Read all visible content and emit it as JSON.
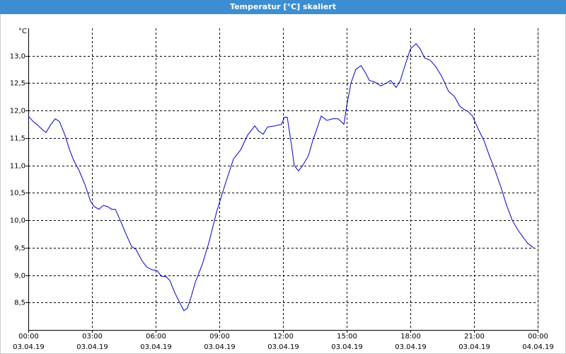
{
  "chart_data": {
    "type": "line",
    "title": "Temperatur [°C] skaliert",
    "y_label": "°C",
    "color": "#0000c8",
    "grid": true,
    "x": [
      0,
      0.23,
      0.4,
      0.67,
      0.83,
      1.07,
      1.27,
      1.47,
      1.73,
      1.93,
      2.13,
      2.4,
      2.67,
      2.93,
      3.1,
      3.33,
      3.53,
      3.73,
      3.93,
      4.1,
      4.33,
      4.6,
      4.87,
      5.07,
      5.33,
      5.57,
      5.8,
      6.07,
      6.27,
      6.5,
      6.67,
      6.9,
      7.13,
      7.33,
      7.5,
      7.67,
      7.87,
      8.2,
      8.5,
      8.87,
      9.27,
      9.67,
      10,
      10.33,
      10.67,
      10.87,
      11.07,
      11.27,
      11.6,
      11.93,
      12.07,
      12.2,
      12.4,
      12.53,
      12.73,
      12.93,
      13.2,
      13.4,
      13.6,
      13.8,
      14.07,
      14.33,
      14.6,
      14.87,
      15,
      15.2,
      15.43,
      15.67,
      15.87,
      16.07,
      16.33,
      16.6,
      16.87,
      17.07,
      17.33,
      17.53,
      17.73,
      18,
      18.27,
      18.47,
      18.67,
      18.93,
      19.2,
      19.47,
      19.8,
      20.07,
      20.33,
      20.53,
      20.73,
      20.93,
      21.2,
      21.47,
      21.73,
      22,
      22.27,
      22.53,
      22.8,
      23.07,
      23.33,
      23.53,
      23.8
    ],
    "values": [
      11.9,
      11.8,
      11.75,
      11.65,
      11.6,
      11.75,
      11.85,
      11.8,
      11.55,
      11.3,
      11.1,
      10.9,
      10.65,
      10.35,
      10.25,
      10.2,
      10.27,
      10.25,
      10.2,
      10.2,
      10.0,
      9.75,
      9.52,
      9.47,
      9.28,
      9.15,
      9.1,
      9.08,
      8.98,
      8.97,
      8.9,
      8.68,
      8.5,
      8.35,
      8.4,
      8.6,
      8.87,
      9.2,
      9.58,
      10.15,
      10.65,
      11.12,
      11.28,
      11.55,
      11.72,
      11.62,
      11.57,
      11.7,
      11.72,
      11.75,
      11.88,
      11.88,
      11.37,
      11.0,
      10.9,
      11.0,
      11.18,
      11.45,
      11.67,
      11.9,
      11.82,
      11.85,
      11.85,
      11.75,
      12.08,
      12.5,
      12.75,
      12.82,
      12.7,
      12.55,
      12.52,
      12.45,
      12.5,
      12.55,
      12.42,
      12.55,
      12.8,
      13.12,
      13.22,
      13.12,
      12.96,
      12.92,
      12.8,
      12.63,
      12.35,
      12.26,
      12.08,
      12.02,
      11.98,
      11.9,
      11.66,
      11.45,
      11.17,
      10.9,
      10.6,
      10.28,
      10.0,
      9.82,
      9.68,
      9.58,
      9.5
    ],
    "xlim": [
      0,
      24
    ],
    "xticks": [
      {
        "value": 0,
        "label": "00:00"
      },
      {
        "value": 3,
        "label": "03:00"
      },
      {
        "value": 6,
        "label": "06:00"
      },
      {
        "value": 9,
        "label": "09:00"
      },
      {
        "value": 12,
        "label": "12:00"
      },
      {
        "value": 15,
        "label": "15:00"
      },
      {
        "value": 18,
        "label": "18:00"
      },
      {
        "value": 21,
        "label": "21:00"
      },
      {
        "value": 24,
        "label": "00:00"
      }
    ],
    "xtick_dates": [
      "03.04.19",
      "03.04.19",
      "03.04.19",
      "03.04.19",
      "03.04.19",
      "03.04.19",
      "03.04.19",
      "03.04.19",
      "04.04.19"
    ],
    "ylim": [
      8.0,
      13.5
    ],
    "yticks": [
      {
        "value": 8.5,
        "label": "8,5"
      },
      {
        "value": 9.0,
        "label": "9,0"
      },
      {
        "value": 9.5,
        "label": "9,5"
      },
      {
        "value": 10.0,
        "label": "10,0"
      },
      {
        "value": 10.5,
        "label": "10,5"
      },
      {
        "value": 11.0,
        "label": "11,0"
      },
      {
        "value": 11.5,
        "label": "11,5"
      },
      {
        "value": 12.0,
        "label": "12,0"
      },
      {
        "value": 12.5,
        "label": "12,5"
      },
      {
        "value": 13.0,
        "label": "13,0"
      }
    ]
  }
}
